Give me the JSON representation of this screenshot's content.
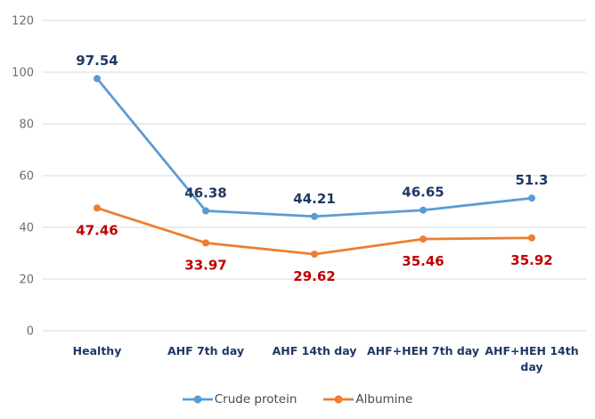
{
  "chart_data": {
    "type": "line",
    "title": "",
    "categories": [
      "Healthy",
      "AHF 7th day",
      "AHF 14th day",
      "AHF+HEH 7th day",
      "AHF+HEH 14th day"
    ],
    "series": [
      {
        "name": "Crude protein",
        "color": "#5B9BD5",
        "label_color": "#1F3864",
        "label_position": "above",
        "values": [
          97.54,
          46.38,
          44.21,
          46.65,
          51.3
        ]
      },
      {
        "name": "Albumine",
        "color": "#ED7D31",
        "label_color": "#C00000",
        "label_position": "below",
        "values": [
          47.46,
          33.97,
          29.62,
          35.46,
          35.92
        ]
      }
    ],
    "y_axis": {
      "min": 0,
      "max": 120,
      "step": 20,
      "tick_labels": [
        "0",
        "20",
        "40",
        "60",
        "80",
        "100",
        "120"
      ]
    },
    "grid": true,
    "legend_position": "bottom",
    "colors": {
      "grid": "#D9D9D9",
      "axis_text": "#6E6E6E",
      "category_text": "#1F3864",
      "legend_text": "#4A4A4A",
      "background": "#FFFFFF"
    }
  }
}
